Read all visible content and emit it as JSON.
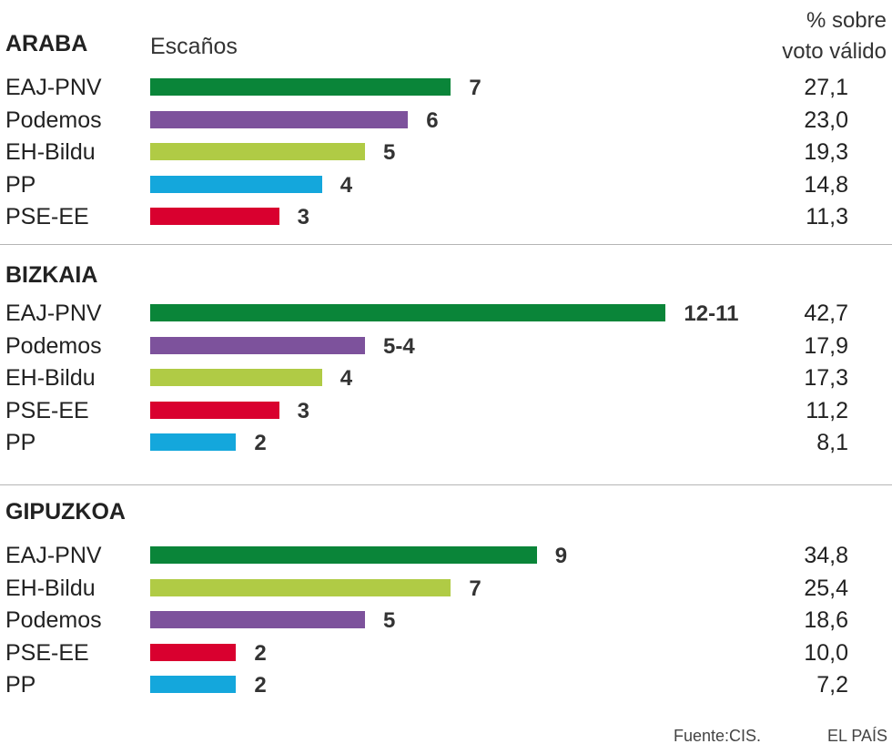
{
  "header": {
    "seats_label": "Escaños",
    "pct_label_line1": "% sobre",
    "pct_label_line2": "voto válido"
  },
  "colors": {
    "EAJ-PNV": "#0a8539",
    "Podemos": "#7d529c",
    "EH-Bildu": "#b0cb45",
    "PP": "#14a7dc",
    "PSE-EE": "#d9002f"
  },
  "chart_data": {
    "type": "bar",
    "orientation": "horizontal",
    "x_max": 12,
    "groups": [
      {
        "name": "ARABA",
        "bars": [
          {
            "party": "EAJ-PNV",
            "seats": 7,
            "seats_label": "7",
            "pct": "27,1"
          },
          {
            "party": "Podemos",
            "seats": 6,
            "seats_label": "6",
            "pct": "23,0"
          },
          {
            "party": "EH-Bildu",
            "seats": 5,
            "seats_label": "5",
            "pct": "19,3"
          },
          {
            "party": "PP",
            "seats": 4,
            "seats_label": "4",
            "pct": "14,8"
          },
          {
            "party": "PSE-EE",
            "seats": 3,
            "seats_label": "3",
            "pct": "11,3"
          }
        ]
      },
      {
        "name": "BIZKAIA",
        "bars": [
          {
            "party": "EAJ-PNV",
            "seats": 12,
            "seats_label": "12-11",
            "pct": "42,7"
          },
          {
            "party": "Podemos",
            "seats": 5,
            "seats_label": "5-4",
            "pct": "17,9"
          },
          {
            "party": "EH-Bildu",
            "seats": 4,
            "seats_label": "4",
            "pct": "17,3"
          },
          {
            "party": "PSE-EE",
            "seats": 3,
            "seats_label": "3",
            "pct": "11,2"
          },
          {
            "party": "PP",
            "seats": 2,
            "seats_label": "2",
            "pct": "8,1"
          }
        ]
      },
      {
        "name": "GIPUZKOA",
        "bars": [
          {
            "party": "EAJ-PNV",
            "seats": 9,
            "seats_label": "9",
            "pct": "34,8"
          },
          {
            "party": "EH-Bildu",
            "seats": 7,
            "seats_label": "7",
            "pct": "25,4"
          },
          {
            "party": "Podemos",
            "seats": 5,
            "seats_label": "5",
            "pct": "18,6"
          },
          {
            "party": "PSE-EE",
            "seats": 2,
            "seats_label": "2",
            "pct": "10,0"
          },
          {
            "party": "PP",
            "seats": 2,
            "seats_label": "2",
            "pct": "7,2"
          }
        ]
      }
    ]
  },
  "footer": {
    "source": "Fuente:CIS.",
    "brand": "EL PAÍS"
  }
}
